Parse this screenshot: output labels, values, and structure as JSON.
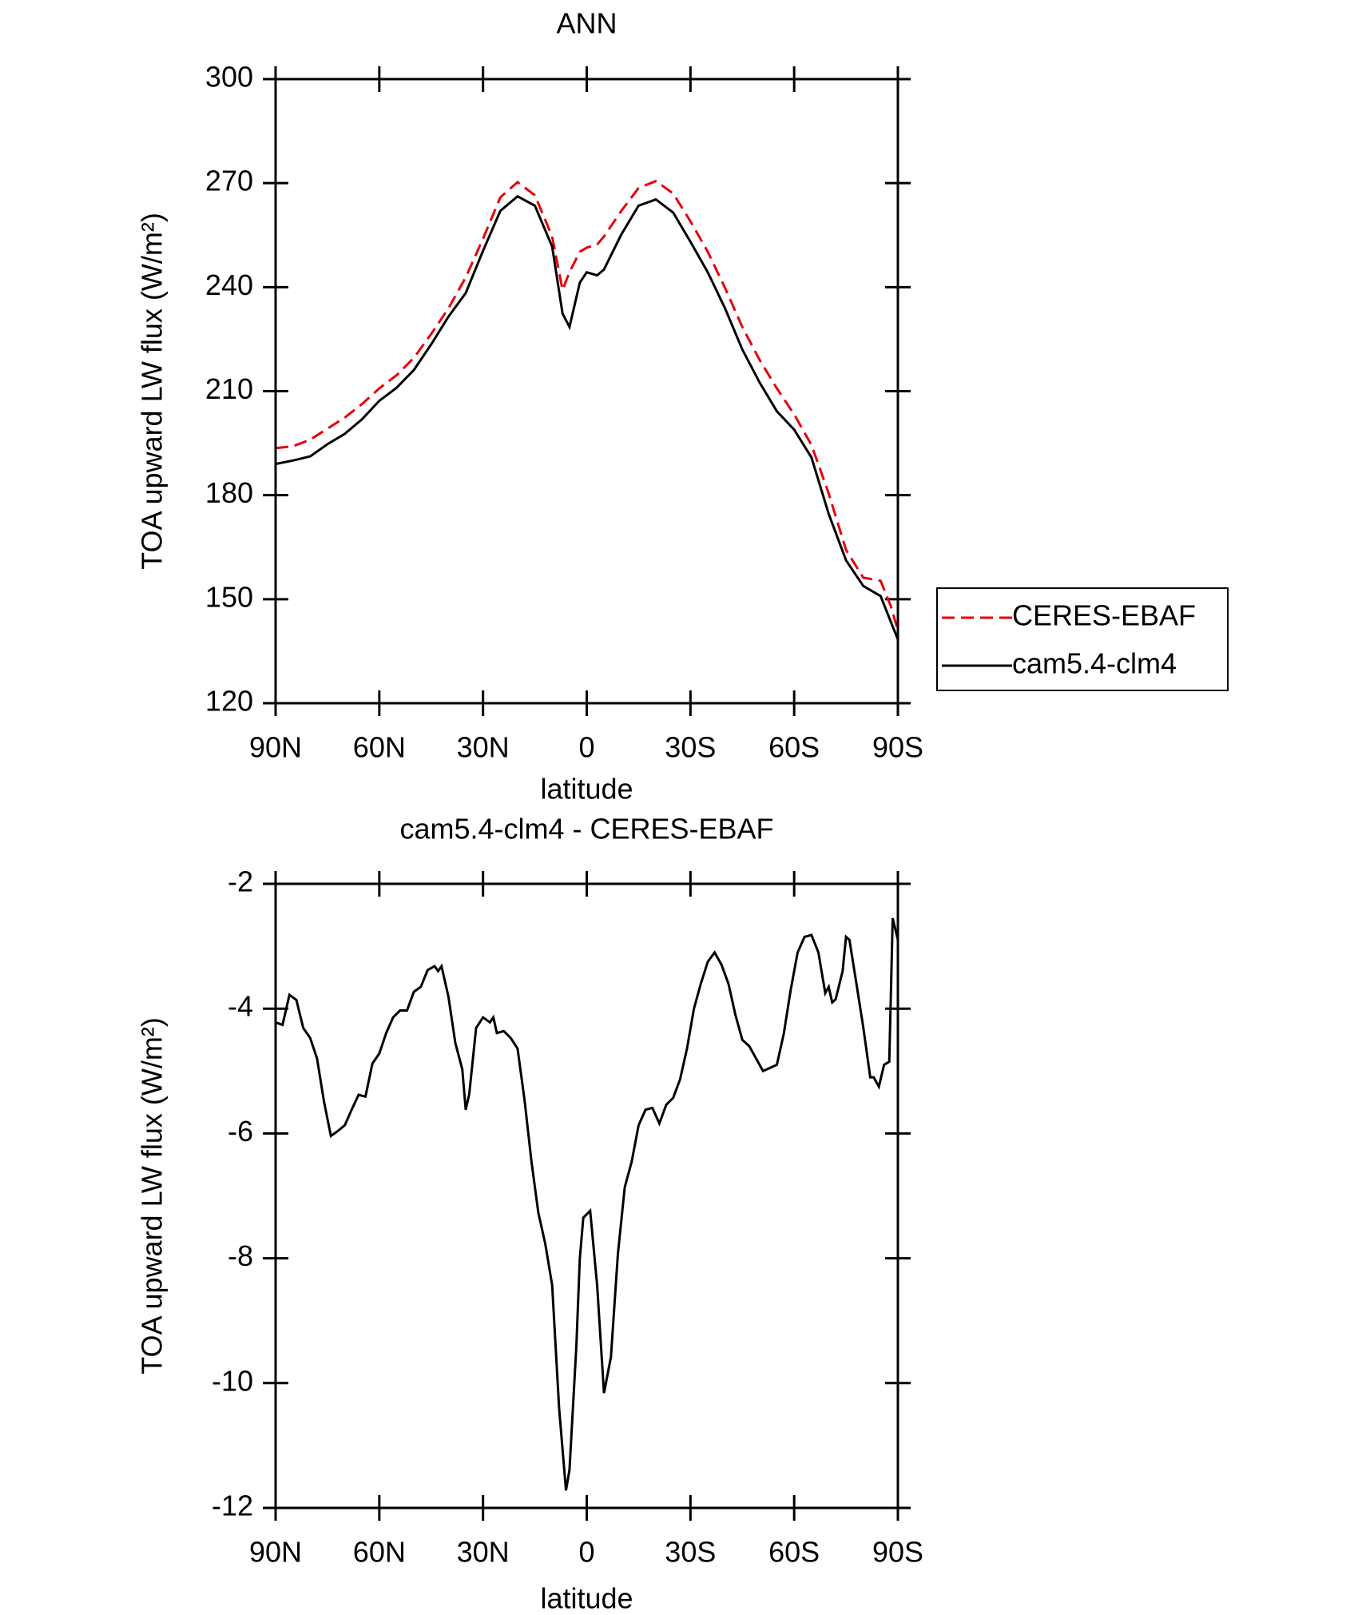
{
  "chart_data": [
    {
      "type": "line",
      "title": "ANN",
      "xlabel": "latitude",
      "ylabel": "TOA upward LW flux (W/m²)",
      "xlim": [
        90,
        -90
      ],
      "xticks": [
        {
          "value": 90,
          "label": "90N"
        },
        {
          "value": 60,
          "label": "60N"
        },
        {
          "value": 30,
          "label": "30N"
        },
        0,
        {
          "value": -30,
          "label": "30S"
        },
        {
          "value": -60,
          "label": "60S"
        },
        {
          "value": -90,
          "label": "90S"
        }
      ],
      "ylim": [
        120,
        300
      ],
      "yticks": [
        120,
        150,
        180,
        210,
        240,
        270,
        300
      ],
      "legend": "right",
      "x": [
        90,
        85,
        80,
        75,
        70,
        65,
        60,
        55,
        50,
        45,
        40,
        35,
        30,
        25,
        20,
        15,
        10,
        7,
        5,
        2,
        0,
        -3,
        -5,
        -10,
        -15,
        -20,
        -25,
        -30,
        -35,
        -40,
        -45,
        -50,
        -55,
        -60,
        -65,
        -70,
        -75,
        -80,
        -85,
        -88,
        -90
      ],
      "series": [
        {
          "name": "CERES-EBAF",
          "color": "#e8000b",
          "linestyle": "dashed",
          "values": [
            193.6,
            194.1,
            196,
            199.2,
            202.4,
            206.3,
            210.8,
            214.6,
            219.6,
            226.5,
            233.9,
            242.8,
            254,
            265.9,
            270.3,
            266.5,
            254.6,
            239.2,
            244.3,
            250.2,
            251.4,
            252.3,
            254.6,
            262,
            268.6,
            270.6,
            267,
            259,
            250.2,
            239.8,
            228.5,
            219,
            210.8,
            203.3,
            194.5,
            180.5,
            164.2,
            156.2,
            155.3,
            147.9,
            141
          ]
        },
        {
          "name": "cam5.4-clm4",
          "color": "#000000",
          "linestyle": "solid",
          "values": [
            189,
            190,
            191.2,
            194.7,
            197.7,
            201.9,
            207.2,
            211,
            216.1,
            223.5,
            231.5,
            238.3,
            250.5,
            262,
            266.2,
            263.5,
            251.7,
            232.4,
            228.5,
            241.3,
            244.3,
            243.4,
            245.1,
            255.2,
            263.5,
            265.3,
            261.5,
            253.1,
            244.3,
            233.9,
            222,
            212.5,
            204.2,
            198.9,
            190.9,
            174.6,
            161.2,
            153.8,
            150.9,
            143.4,
            138.4
          ]
        }
      ]
    },
    {
      "type": "line",
      "title": "cam5.4-clm4 - CERES-EBAF",
      "xlabel": "latitude",
      "ylabel": "TOA upward LW flux (W/m²)",
      "xlim": [
        90,
        -90
      ],
      "xticks": [
        {
          "value": 90,
          "label": "90N"
        },
        {
          "value": 60,
          "label": "60N"
        },
        {
          "value": 30,
          "label": "30N"
        },
        0,
        {
          "value": -30,
          "label": "30S"
        },
        {
          "value": -60,
          "label": "60S"
        },
        {
          "value": -90,
          "label": "90S"
        }
      ],
      "ylim": [
        -12,
        -2
      ],
      "yticks": [
        -12,
        -10,
        -8,
        -6,
        -4,
        -2
      ],
      "x": [
        90,
        88,
        86,
        84,
        82,
        80,
        78,
        76,
        74,
        72,
        70,
        68,
        66,
        64,
        62,
        60,
        58,
        56,
        54,
        52,
        50,
        48,
        46,
        44,
        43,
        42,
        40,
        38,
        36,
        35,
        34,
        32,
        30,
        28,
        27,
        26,
        24,
        22,
        20,
        18,
        16,
        14,
        12,
        10,
        8,
        6,
        5,
        3,
        2,
        1,
        -1,
        -3,
        -5,
        -7,
        -9,
        -11,
        -13,
        -15,
        -17,
        -19,
        -21,
        -23,
        -25,
        -27,
        -29,
        -31,
        -33,
        -35,
        -37,
        -39,
        -41,
        -43,
        -45,
        -47,
        -49,
        -51,
        -53,
        -55,
        -57,
        -59,
        -61,
        -63,
        -65,
        -67,
        -69,
        -70,
        -71,
        -72,
        -74,
        -75,
        -76,
        -78,
        -80,
        -82,
        -83,
        -84.5,
        -86,
        -87.5,
        -88.5,
        -90
      ],
      "series": [
        {
          "color": "#000000",
          "linestyle": "solid",
          "values": [
            -4.22,
            -4.26,
            -3.78,
            -3.86,
            -4.31,
            -4.47,
            -4.8,
            -5.49,
            -6.04,
            -5.96,
            -5.87,
            -5.62,
            -5.38,
            -5.41,
            -4.88,
            -4.72,
            -4.39,
            -4.14,
            -4.03,
            -4.03,
            -3.73,
            -3.65,
            -3.38,
            -3.32,
            -3.4,
            -3.32,
            -3.81,
            -4.55,
            -4.97,
            -5.62,
            -5.37,
            -4.31,
            -4.14,
            -4.22,
            -4.14,
            -4.39,
            -4.36,
            -4.47,
            -4.64,
            -5.46,
            -6.45,
            -7.27,
            -7.77,
            -8.43,
            -10.4,
            -11.72,
            -11.39,
            -9.41,
            -8.01,
            -7.35,
            -7.24,
            -8.43,
            -10.16,
            -9.58,
            -7.93,
            -6.86,
            -6.45,
            -5.87,
            -5.62,
            -5.59,
            -5.84,
            -5.54,
            -5.43,
            -5.13,
            -4.64,
            -4.0,
            -3.6,
            -3.25,
            -3.1,
            -3.3,
            -3.6,
            -4.1,
            -4.5,
            -4.6,
            -4.8,
            -5.0,
            -4.95,
            -4.9,
            -4.4,
            -3.7,
            -3.1,
            -2.85,
            -2.82,
            -3.1,
            -3.75,
            -3.65,
            -3.9,
            -3.85,
            -3.4,
            -2.85,
            -2.9,
            -3.6,
            -4.3,
            -5.1,
            -5.1,
            -5.25,
            -4.9,
            -4.85,
            -2.55,
            -2.9
          ]
        }
      ]
    }
  ]
}
